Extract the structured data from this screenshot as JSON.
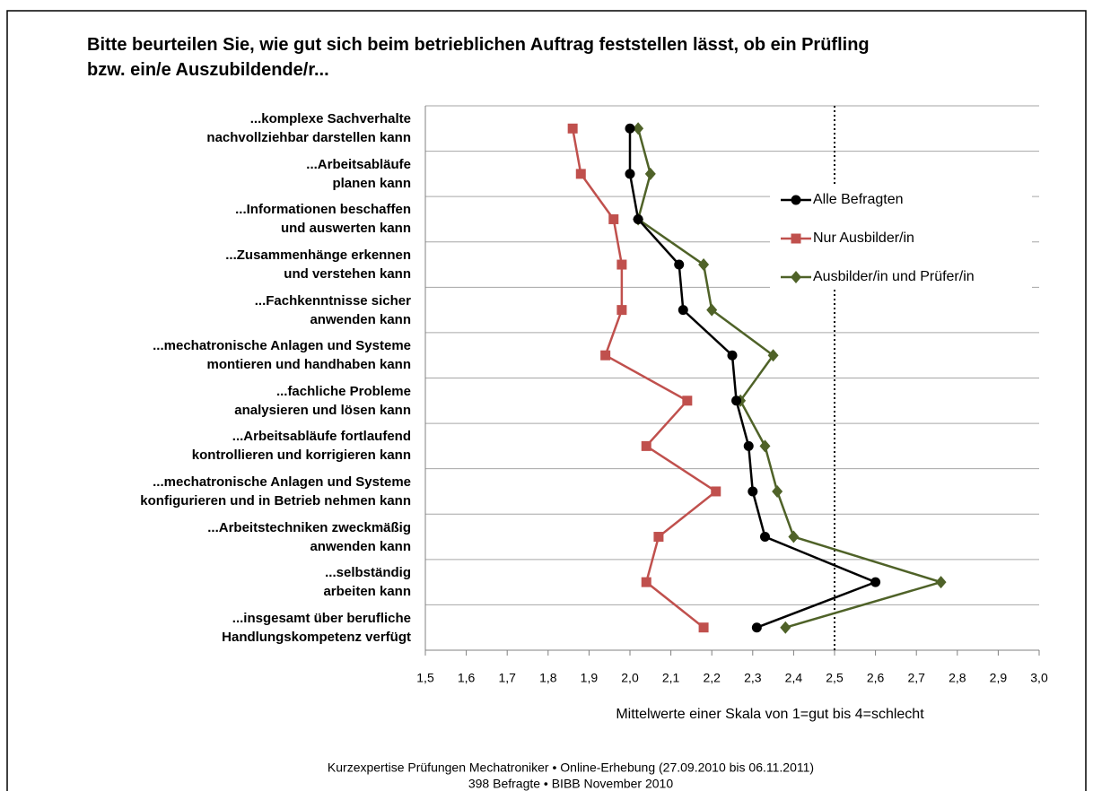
{
  "chart_data": {
    "type": "line",
    "title": "Bitte beurteilen Sie, wie gut sich beim betrieblichen Auftrag feststellen lässt, ob ein Prüfling\nbzw. ein/e Auszubildende/r...",
    "categories": [
      "...komplexe Sachverhalte\nnachvollziehbar darstellen kann",
      "...Arbeitsabläufe\nplanen kann",
      "...Informationen beschaffen\nund auswerten kann",
      "...Zusammenhänge erkennen\nund verstehen kann",
      "...Fachkenntnisse sicher\nanwenden kann",
      "...mechatronische Anlagen und Systeme\nmontieren und handhaben kann",
      "...fachliche Probleme\nanalysieren und lösen kann",
      "...Arbeitsabläufe fortlaufend\nkontrollieren und korrigieren kann",
      "...mechatronische Anlagen und Systeme\nkonfigurieren und in Betrieb nehmen kann",
      "...Arbeitstechniken zweckmäßig\nanwenden kann",
      "...selbständig\narbeiten kann",
      "...insgesamt über berufliche\nHandlungskompetenz verfügt"
    ],
    "series": [
      {
        "name": "Alle Befragten",
        "color": "#000000",
        "marker": "circle",
        "values": [
          2.0,
          2.0,
          2.02,
          2.12,
          2.13,
          2.25,
          2.26,
          2.29,
          2.3,
          2.33,
          2.6,
          2.31
        ]
      },
      {
        "name": "Nur Ausbilder/in",
        "color": "#c0504d",
        "marker": "square",
        "values": [
          1.86,
          1.88,
          1.96,
          1.98,
          1.98,
          1.94,
          2.14,
          2.04,
          2.21,
          2.07,
          2.04,
          2.18
        ]
      },
      {
        "name": "Ausbilder/in und Prüfer/in",
        "color": "#4f6228",
        "marker": "diamond",
        "values": [
          2.02,
          2.05,
          2.02,
          2.18,
          2.2,
          2.35,
          2.27,
          2.33,
          2.36,
          2.4,
          2.76,
          2.38
        ]
      }
    ],
    "xlabel": "Mittelwerte einer Skala von 1=gut bis 4=schlecht",
    "xlim": [
      1.5,
      3.0
    ],
    "xticks": [
      {
        "value": 1.5,
        "label": "1,5"
      },
      {
        "value": 1.6,
        "label": "1,6"
      },
      {
        "value": 1.7,
        "label": "1,7"
      },
      {
        "value": 1.8,
        "label": "1,8"
      },
      {
        "value": 1.9,
        "label": "1,9"
      },
      {
        "value": 2.0,
        "label": "2,0"
      },
      {
        "value": 2.1,
        "label": "2,1"
      },
      {
        "value": 2.2,
        "label": "2,2"
      },
      {
        "value": 2.3,
        "label": "2,3"
      },
      {
        "value": 2.4,
        "label": "2,4"
      },
      {
        "value": 2.5,
        "label": "2,5"
      },
      {
        "value": 2.6,
        "label": "2,6"
      },
      {
        "value": 2.7,
        "label": "2,7"
      },
      {
        "value": 2.8,
        "label": "2,8"
      },
      {
        "value": 2.9,
        "label": "2,9"
      },
      {
        "value": 3.0,
        "label": "3,0"
      }
    ],
    "reference_line": 2.5,
    "grid": true,
    "legend": "upper right",
    "footer": [
      "Kurzexpertise Prüfungen Mechatroniker • Online-Erhebung (27.09.2010 bis 06.11.2011)",
      "398 Befragte • BIBB November 2010"
    ]
  }
}
